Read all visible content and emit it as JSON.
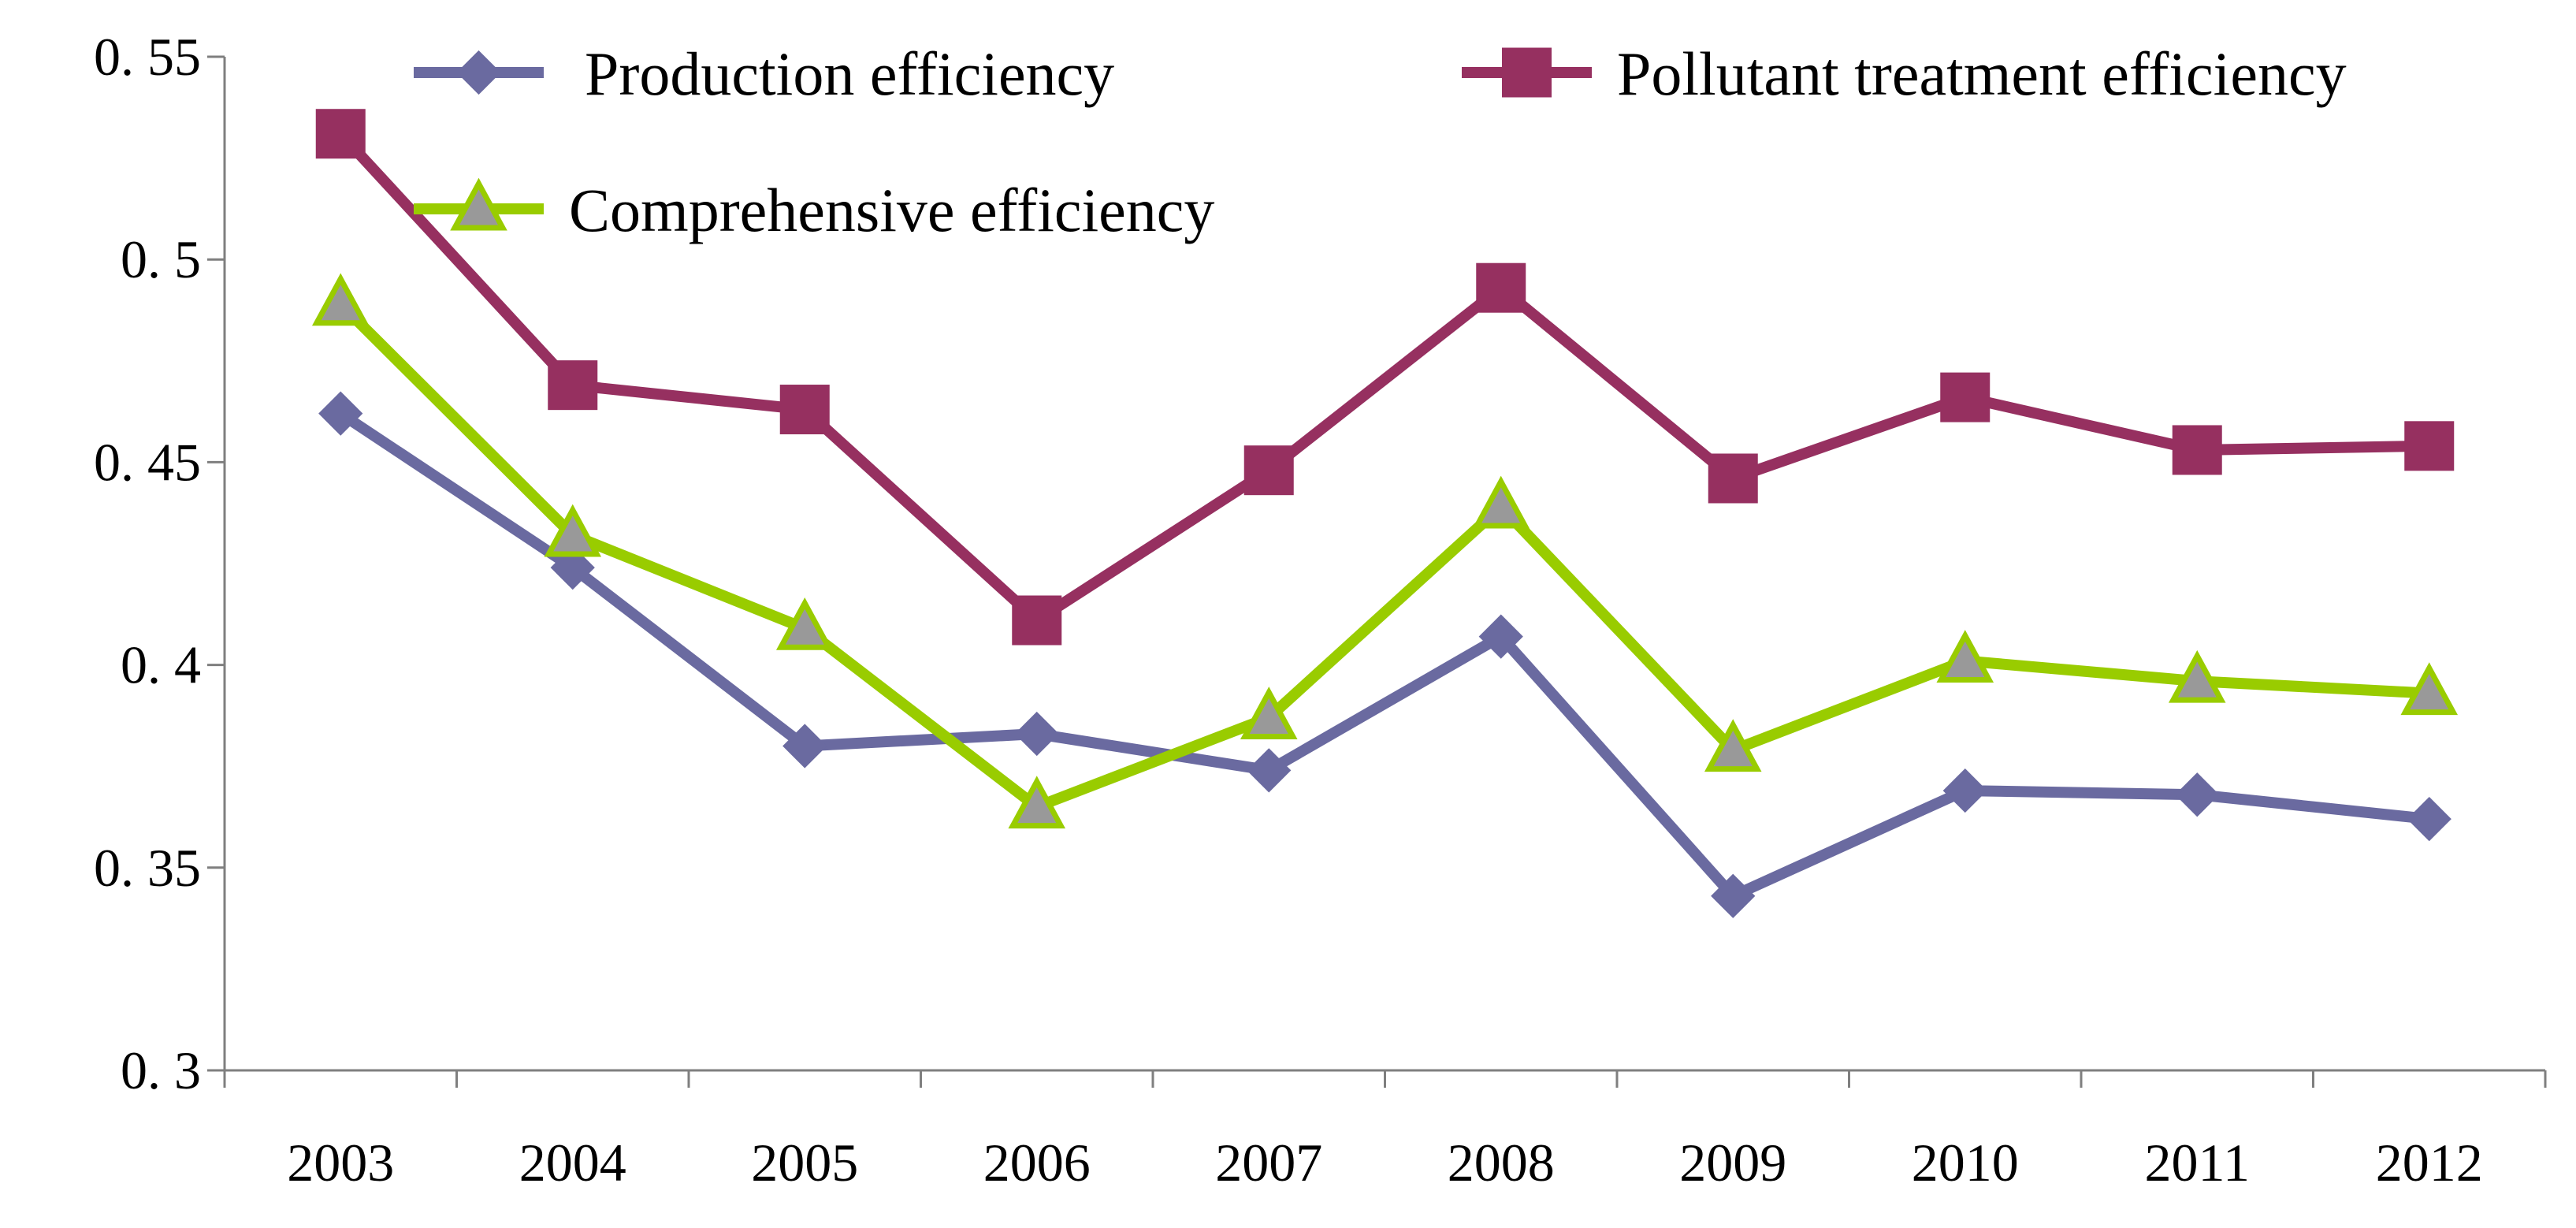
{
  "chart_data": {
    "type": "line",
    "title": "",
    "xlabel": "",
    "ylabel": "",
    "categories": [
      "2003",
      "2004",
      "2005",
      "2006",
      "2007",
      "2008",
      "2009",
      "2010",
      "2011",
      "2012"
    ],
    "ylim": [
      0.3,
      0.55
    ],
    "yticks": [
      0.3,
      0.35,
      0.4,
      0.45,
      0.5,
      0.55
    ],
    "ytick_labels": [
      "0. 3",
      "0. 35",
      "0. 4",
      "0. 45",
      "0. 5",
      "0. 55"
    ],
    "grid": false,
    "legend_position": "top",
    "series": [
      {
        "name": "Production efficiency",
        "marker": "diamond",
        "line_color": "#6A6AA0",
        "marker_color": "#6A6AA0",
        "marker_stroke": "#6A6AA0",
        "values": [
          0.462,
          0.424,
          0.38,
          0.383,
          0.374,
          0.407,
          0.343,
          0.369,
          0.368,
          0.362
        ]
      },
      {
        "name": "Pollutant treatment efficiency",
        "marker": "square",
        "line_color": "#963060",
        "marker_color": "#963060",
        "marker_stroke": "#963060",
        "values": [
          0.531,
          0.469,
          0.463,
          0.411,
          0.448,
          0.493,
          0.446,
          0.466,
          0.453,
          0.454
        ]
      },
      {
        "name": "Comprehensive efficiency",
        "marker": "triangle",
        "line_color": "#99CC00",
        "marker_color": "#999999",
        "marker_stroke": "#99CC00",
        "values": [
          0.489,
          0.432,
          0.409,
          0.365,
          0.387,
          0.439,
          0.379,
          0.401,
          0.396,
          0.393
        ]
      }
    ]
  }
}
